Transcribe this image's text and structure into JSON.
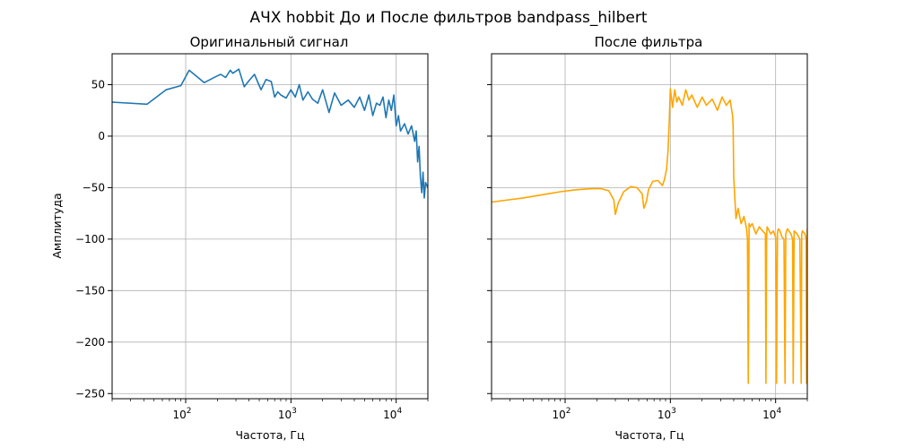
{
  "figure": {
    "suptitle": "АЧХ hobbit До и После фильтров bandpass_hilbert"
  },
  "chart_data": [
    {
      "type": "line",
      "title": "Оригинальный сигнал",
      "xlabel": "Частота, Гц",
      "ylabel": "Амплитуда",
      "xscale": "log",
      "xlim": [
        20,
        20000
      ],
      "ylim": [
        -255,
        80
      ],
      "xticks": [
        {
          "base": "10",
          "exp": "2",
          "value": 100
        },
        {
          "base": "10",
          "exp": "3",
          "value": 1000
        },
        {
          "base": "10",
          "exp": "4",
          "value": 10000
        }
      ],
      "yticks": [
        50,
        0,
        -50,
        -100,
        -150,
        -200,
        -250
      ],
      "grid": true,
      "series": [
        {
          "color": "#1f77b4",
          "x": [
            20,
            43,
            65,
            90,
            108,
            150,
            195,
            215,
            240,
            265,
            280,
            320,
            360,
            400,
            450,
            520,
            580,
            650,
            700,
            750,
            800,
            900,
            1000,
            1100,
            1200,
            1300,
            1450,
            1600,
            1800,
            2000,
            2300,
            2600,
            3000,
            3500,
            4000,
            4500,
            5000,
            5500,
            6000,
            6500,
            7000,
            7500,
            8000,
            8500,
            9000,
            9500,
            10000,
            10500,
            11000,
            12000,
            13000,
            14000,
            15000,
            15500,
            16000,
            16500,
            17000,
            17500,
            18000,
            18500,
            19000,
            20000
          ],
          "values": [
            33,
            31,
            45,
            49,
            64,
            52,
            58,
            60,
            57,
            64,
            61,
            65,
            48,
            54,
            60,
            45,
            55,
            53,
            38,
            43,
            40,
            37,
            45,
            38,
            50,
            35,
            43,
            36,
            32,
            45,
            23,
            42,
            30,
            35,
            28,
            38,
            25,
            40,
            20,
            32,
            30,
            38,
            18,
            35,
            25,
            40,
            10,
            20,
            5,
            12,
            2,
            10,
            -5,
            5,
            -25,
            -10,
            -40,
            -55,
            -35,
            -60,
            -45,
            -50
          ]
        }
      ]
    },
    {
      "type": "line",
      "title": "После фильтра",
      "xlabel": "Частота, Гц",
      "ylabel": "",
      "xscale": "log",
      "xlim": [
        20,
        20000
      ],
      "ylim": [
        -255,
        80
      ],
      "xticks": [
        {
          "base": "10",
          "exp": "2",
          "value": 100
        },
        {
          "base": "10",
          "exp": "3",
          "value": 1000
        },
        {
          "base": "10",
          "exp": "4",
          "value": 10000
        }
      ],
      "yticks": [
        50,
        0,
        -50,
        -100,
        -150,
        -200,
        -250
      ],
      "grid": true,
      "series": [
        {
          "color": "#ffa500",
          "x": [
            20,
            40,
            60,
            90,
            130,
            180,
            220,
            260,
            290,
            300,
            320,
            360,
            420,
            480,
            540,
            560,
            590,
            620,
            680,
            760,
            840,
            880,
            920,
            950,
            980,
            1000,
            1050,
            1100,
            1150,
            1200,
            1300,
            1400,
            1500,
            1600,
            1800,
            2000,
            2200,
            2500,
            2800,
            3100,
            3400,
            3700,
            3900,
            3950,
            4000,
            4100,
            4200,
            4400,
            4700,
            5000,
            5300,
            5400,
            5500,
            5600,
            5700,
            6000,
            6500,
            7000,
            7500,
            8000,
            8100,
            8200,
            8300,
            8500,
            9000,
            9500,
            10000,
            10200,
            10400,
            10600,
            11000,
            11500,
            12000,
            12300,
            12500,
            12700,
            13000,
            14000,
            14500,
            14700,
            15000,
            16000,
            17000,
            17500,
            17700,
            18000,
            19000,
            19500,
            19700,
            20000
          ],
          "values": [
            -64,
            -60,
            -57,
            -54,
            -52,
            -51,
            -51,
            -53,
            -62,
            -76,
            -65,
            -54,
            -49,
            -50,
            -56,
            -70,
            -64,
            -52,
            -44,
            -43,
            -48,
            -42,
            -32,
            -15,
            20,
            46,
            28,
            45,
            33,
            38,
            30,
            45,
            35,
            40,
            28,
            38,
            30,
            36,
            25,
            38,
            30,
            35,
            20,
            10,
            -40,
            -60,
            -80,
            -70,
            -85,
            -78,
            -90,
            -100,
            -240,
            -85,
            -88,
            -85,
            -95,
            -88,
            -92,
            -95,
            -240,
            -100,
            -88,
            -90,
            -95,
            -92,
            -98,
            -240,
            -95,
            -90,
            -92,
            -98,
            -100,
            -240,
            -95,
            -92,
            -90,
            -95,
            -100,
            -240,
            -92,
            -95,
            -100,
            -240,
            -95,
            -92,
            -95,
            -100,
            -240,
            -90
          ]
        }
      ]
    }
  ]
}
